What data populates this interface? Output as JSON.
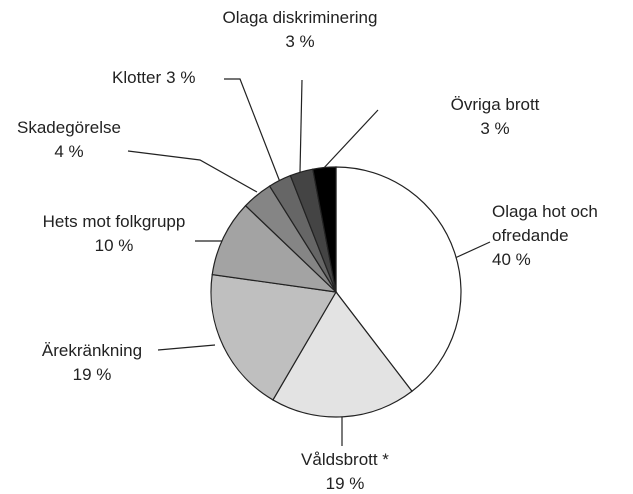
{
  "chart_data": {
    "type": "pie",
    "categories": [
      "Olaga hot och ofredande",
      "Våldsbrott *",
      "Ärekränkning",
      "Hets mot folkgrupp",
      "Skadegörelse",
      "Klotter",
      "Olaga diskriminering",
      "Övriga brott"
    ],
    "values": [
      40,
      19,
      19,
      10,
      4,
      3,
      3,
      3
    ],
    "value_labels": [
      "40 %",
      "19 %",
      "19 %",
      "10 %",
      "4 %",
      "3 %",
      "3 %",
      "3 %"
    ],
    "colors": [
      "#ffffff",
      "#e3e3e3",
      "#bfbfbf",
      "#a3a3a3",
      "#858585",
      "#666666",
      "#444444",
      "#000000"
    ]
  }
}
